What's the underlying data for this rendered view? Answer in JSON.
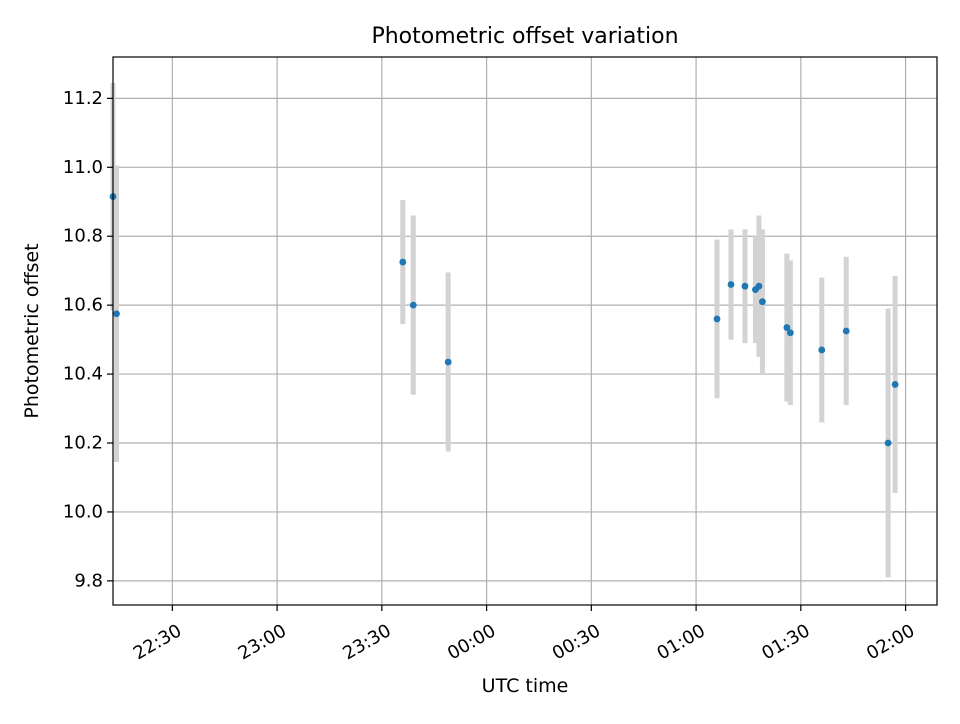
{
  "chart_data": {
    "type": "scatter",
    "title": "Photometric offset variation",
    "xlabel": "UTC time",
    "ylabel": "Photometric offset",
    "x_axis": {
      "scale": "time",
      "range": [
        "22:13",
        "02:09"
      ],
      "ticks": [
        "22:30",
        "23:00",
        "23:30",
        "00:00",
        "00:30",
        "01:00",
        "01:30",
        "02:00"
      ],
      "tick_label_rotation": "30deg"
    },
    "y_axis": {
      "range": [
        9.73,
        11.32
      ],
      "ticks": [
        "9.8",
        "10.0",
        "10.2",
        "10.4",
        "10.6",
        "10.8",
        "11.0",
        "11.2"
      ]
    },
    "grid": true,
    "legend": false,
    "colors": {
      "points": "#1f77b4",
      "error_bars": "#d3d3d3",
      "grid": "#b0b0b0"
    },
    "points": [
      {
        "x": "22:13",
        "y": 10.915,
        "yerr": 0.33
      },
      {
        "x": "22:14",
        "y": 10.575,
        "yerr": 0.43
      },
      {
        "x": "23:36",
        "y": 10.725,
        "yerr": 0.18
      },
      {
        "x": "23:39",
        "y": 10.6,
        "yerr": 0.26
      },
      {
        "x": "23:49",
        "y": 10.435,
        "yerr": 0.26
      },
      {
        "x": "01:06",
        "y": 10.56,
        "yerr": 0.23
      },
      {
        "x": "01:10",
        "y": 10.66,
        "yerr": 0.16
      },
      {
        "x": "01:14",
        "y": 10.655,
        "yerr": 0.165
      },
      {
        "x": "01:17",
        "y": 10.645,
        "yerr": 0.155
      },
      {
        "x": "01:18",
        "y": 10.655,
        "yerr": 0.205
      },
      {
        "x": "01:19",
        "y": 10.61,
        "yerr": 0.21
      },
      {
        "x": "01:26",
        "y": 10.535,
        "yerr": 0.215
      },
      {
        "x": "01:27",
        "y": 10.52,
        "yerr": 0.21
      },
      {
        "x": "01:36",
        "y": 10.47,
        "yerr": 0.21
      },
      {
        "x": "01:43",
        "y": 10.525,
        "yerr": 0.215
      },
      {
        "x": "01:55",
        "y": 10.2,
        "yerr": 0.39
      },
      {
        "x": "01:57",
        "y": 10.37,
        "yerr": 0.315
      }
    ]
  }
}
